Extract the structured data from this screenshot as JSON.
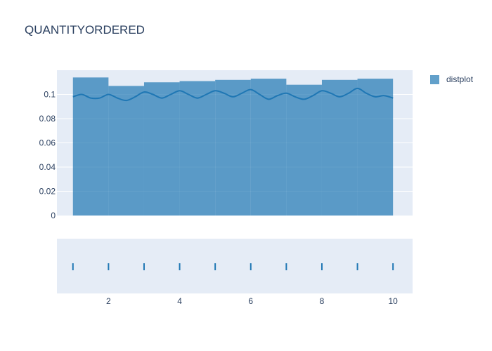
{
  "chart_data": {
    "type": "histogram",
    "title": "QUANTITYORDERED",
    "legend": {
      "position": "top-right",
      "entries": [
        "distplot"
      ]
    },
    "colors": {
      "bar": "#1f77b4",
      "plot_bg": "#e5ecf6",
      "grid": "#ffffff",
      "text": "#2a3f5f"
    },
    "histogram": {
      "name": "distplot",
      "bins": [
        {
          "start": 1,
          "end": 2,
          "density": 0.114
        },
        {
          "start": 2,
          "end": 3,
          "density": 0.107
        },
        {
          "start": 3,
          "end": 4,
          "density": 0.11
        },
        {
          "start": 4,
          "end": 5,
          "density": 0.111
        },
        {
          "start": 5,
          "end": 6,
          "density": 0.112
        },
        {
          "start": 6,
          "end": 7,
          "density": 0.113
        },
        {
          "start": 7,
          "end": 8,
          "density": 0.108
        },
        {
          "start": 8,
          "end": 9,
          "density": 0.112
        },
        {
          "start": 9,
          "end": 10,
          "density": 0.113
        }
      ]
    },
    "kde": {
      "x": [
        1.0,
        1.25,
        1.5,
        1.75,
        2.0,
        2.25,
        2.5,
        2.75,
        3.0,
        3.25,
        3.5,
        3.75,
        4.0,
        4.25,
        4.5,
        4.75,
        5.0,
        5.25,
        5.5,
        5.75,
        6.0,
        6.25,
        6.5,
        6.75,
        7.0,
        7.25,
        7.5,
        7.75,
        8.0,
        8.25,
        8.5,
        8.75,
        9.0,
        9.25,
        9.5,
        9.75,
        10.0
      ],
      "y": [
        0.098,
        0.1,
        0.097,
        0.097,
        0.1,
        0.097,
        0.095,
        0.098,
        0.102,
        0.1,
        0.097,
        0.1,
        0.103,
        0.1,
        0.097,
        0.1,
        0.103,
        0.101,
        0.098,
        0.101,
        0.104,
        0.1,
        0.096,
        0.099,
        0.101,
        0.098,
        0.096,
        0.099,
        0.103,
        0.101,
        0.098,
        0.101,
        0.105,
        0.101,
        0.098,
        0.099,
        0.097
      ]
    },
    "rug_values": [
      1,
      2,
      3,
      4,
      5,
      6,
      7,
      8,
      9,
      10
    ],
    "y_axis": {
      "range": [
        0,
        0.12
      ],
      "ticks": [
        0,
        0.02,
        0.04,
        0.06,
        0.08,
        0.1
      ],
      "tick_labels": [
        "0",
        "0.02",
        "0.04",
        "0.06",
        "0.08",
        "0.1"
      ],
      "grid": true
    },
    "x_axis": {
      "range": [
        0.55,
        10.55
      ],
      "ticks": [
        2,
        4,
        6,
        8,
        10
      ],
      "tick_labels": [
        "2",
        "4",
        "6",
        "8",
        "10"
      ]
    }
  }
}
